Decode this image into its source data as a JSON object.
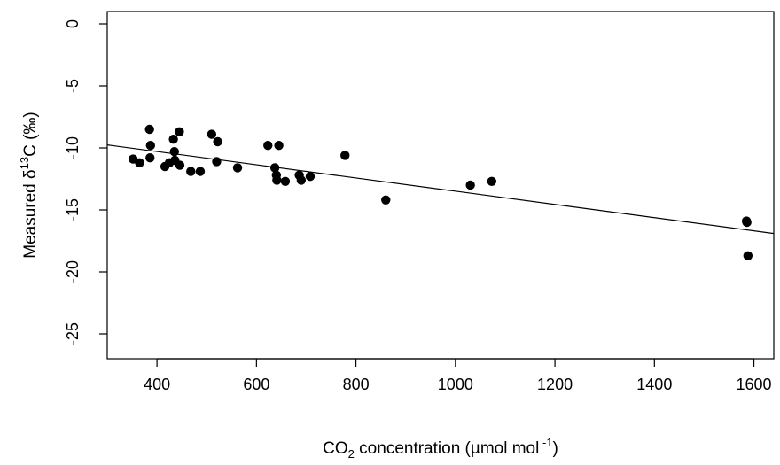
{
  "chart_data": {
    "type": "scatter",
    "title": "",
    "xlabel": {
      "pre": "CO",
      "sub": "2",
      "mid": " concentration (µmol mol",
      "sup": " -1",
      "post": ")"
    },
    "ylabel": {
      "pre": "Measured δ",
      "sup": "13",
      "post": "C (‰)"
    },
    "xlim": [
      300,
      1640
    ],
    "ylim": [
      -27,
      1
    ],
    "xticks": [
      400,
      600,
      800,
      1000,
      1200,
      1400,
      1600
    ],
    "yticks": [
      0,
      -5,
      -10,
      -15,
      -20,
      -25
    ],
    "grid": false,
    "points": [
      [
        352,
        -10.9
      ],
      [
        365,
        -11.2
      ],
      [
        385,
        -8.5
      ],
      [
        387,
        -9.8
      ],
      [
        386,
        -10.8
      ],
      [
        416,
        -11.5
      ],
      [
        425,
        -11.2
      ],
      [
        433,
        -9.3
      ],
      [
        435,
        -10.3
      ],
      [
        436,
        -11.0
      ],
      [
        445,
        -8.7
      ],
      [
        446,
        -11.4
      ],
      [
        468,
        -11.9
      ],
      [
        487,
        -11.9
      ],
      [
        510,
        -8.9
      ],
      [
        520,
        -11.1
      ],
      [
        522,
        -9.5
      ],
      [
        562,
        -11.6
      ],
      [
        623,
        -9.8
      ],
      [
        637,
        -11.6
      ],
      [
        640,
        -12.2
      ],
      [
        641,
        -12.6
      ],
      [
        645,
        -9.8
      ],
      [
        658,
        -12.7
      ],
      [
        686,
        -12.2
      ],
      [
        690,
        -12.6
      ],
      [
        708,
        -12.3
      ],
      [
        778,
        -10.6
      ],
      [
        860,
        -14.2
      ],
      [
        1030,
        -13.0
      ],
      [
        1073,
        -12.7
      ],
      [
        1585,
        -15.9
      ],
      [
        1586,
        -16.0
      ],
      [
        1588,
        -18.7
      ]
    ],
    "trendline": {
      "x": [
        300,
        1640
      ],
      "y": [
        -9.76,
        -16.9
      ]
    }
  }
}
